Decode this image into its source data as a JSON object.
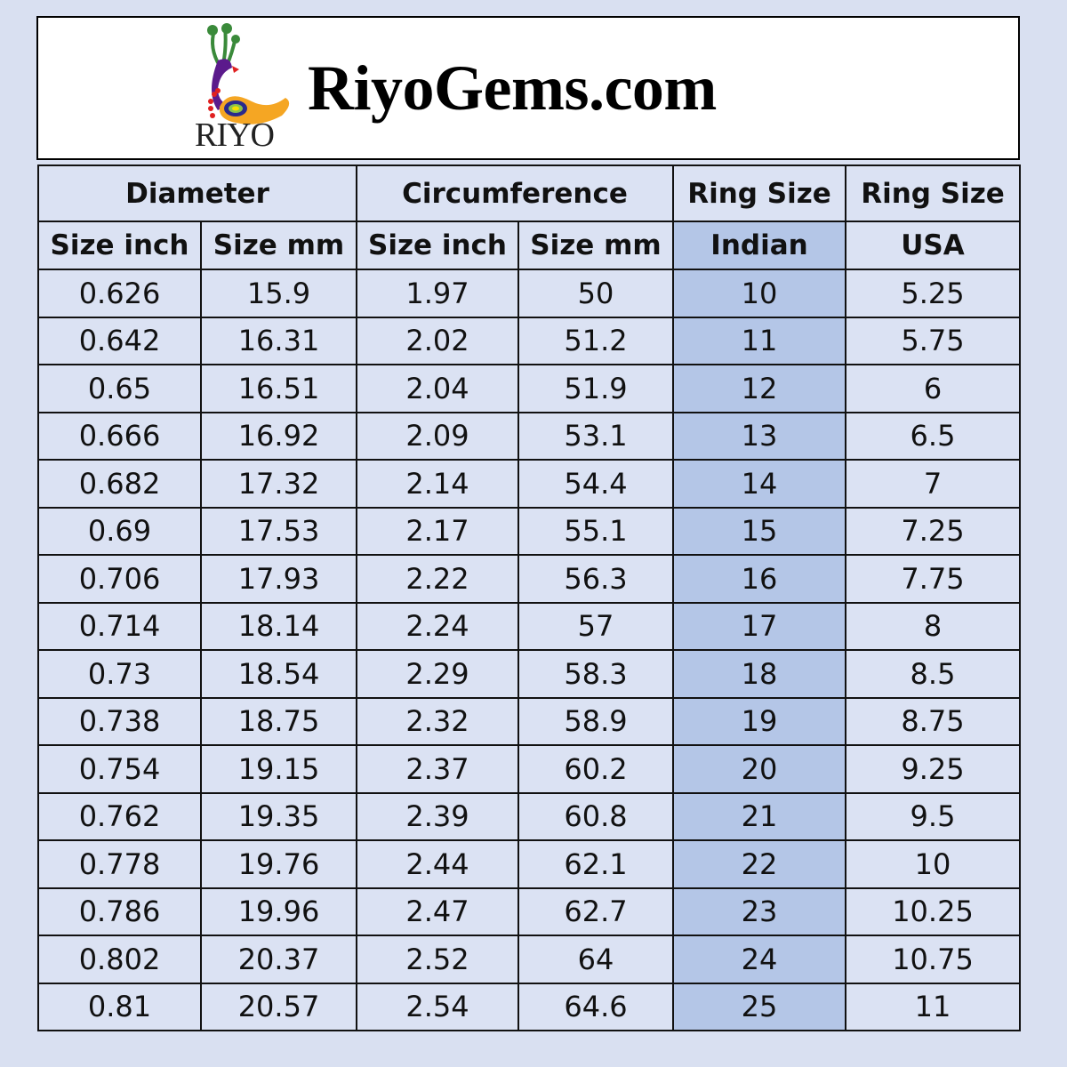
{
  "header": {
    "logo_text": "RIYO",
    "site_title": "RiyoGems.com"
  },
  "table": {
    "group_headers": [
      "Diameter",
      "Circumference",
      "Ring Size",
      "Ring Size"
    ],
    "sub_headers": [
      "Size inch",
      "Size mm",
      "Size inch",
      "Size mm",
      "Indian",
      "USA"
    ],
    "rows": [
      [
        "0.626",
        "15.9",
        "1.97",
        "50",
        "10",
        "5.25"
      ],
      [
        "0.642",
        "16.31",
        "2.02",
        "51.2",
        "11",
        "5.75"
      ],
      [
        "0.65",
        "16.51",
        "2.04",
        "51.9",
        "12",
        "6"
      ],
      [
        "0.666",
        "16.92",
        "2.09",
        "53.1",
        "13",
        "6.5"
      ],
      [
        "0.682",
        "17.32",
        "2.14",
        "54.4",
        "14",
        "7"
      ],
      [
        "0.69",
        "17.53",
        "2.17",
        "55.1",
        "15",
        "7.25"
      ],
      [
        "0.706",
        "17.93",
        "2.22",
        "56.3",
        "16",
        "7.75"
      ],
      [
        "0.714",
        "18.14",
        "2.24",
        "57",
        "17",
        "8"
      ],
      [
        "0.73",
        "18.54",
        "2.29",
        "58.3",
        "18",
        "8.5"
      ],
      [
        "0.738",
        "18.75",
        "2.32",
        "58.9",
        "19",
        "8.75"
      ],
      [
        "0.754",
        "19.15",
        "2.37",
        "60.2",
        "20",
        "9.25"
      ],
      [
        "0.762",
        "19.35",
        "2.39",
        "60.8",
        "21",
        "9.5"
      ],
      [
        "0.778",
        "19.76",
        "2.44",
        "62.1",
        "22",
        "10"
      ],
      [
        "0.786",
        "19.96",
        "2.47",
        "62.7",
        "23",
        "10.25"
      ],
      [
        "0.802",
        "20.37",
        "2.52",
        "64",
        "24",
        "10.75"
      ],
      [
        "0.81",
        "20.57",
        "2.54",
        "64.6",
        "25",
        "11"
      ]
    ]
  },
  "colors": {
    "background": "#d9e0f1",
    "cell": "#dbe2f3",
    "highlight_column": "#b4c6e7"
  }
}
